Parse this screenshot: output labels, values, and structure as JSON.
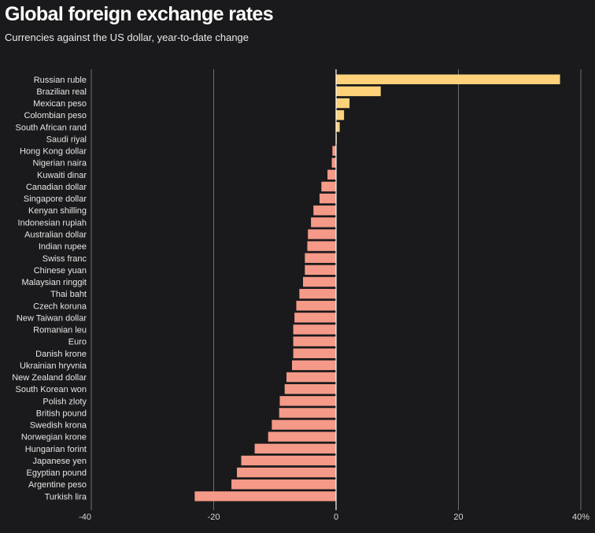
{
  "title": "Global foreign exchange rates",
  "subtitle": "Currencies against the US dollar, year-to-date change",
  "colors": {
    "background": "#1a1a1c",
    "positive": "#ffd27a",
    "negative": "#f59a88",
    "grid": "#6e6e72"
  },
  "chart_data": {
    "type": "bar",
    "orientation": "horizontal",
    "title": "Global foreign exchange rates",
    "subtitle": "Currencies against the US dollar, year-to-date change",
    "xlabel": "",
    "ylabel": "",
    "xlim": [
      -40,
      40
    ],
    "xticks": [
      -40,
      -20,
      0,
      20,
      40
    ],
    "xtick_labels": [
      "-40",
      "-20",
      "0",
      "20",
      "40%"
    ],
    "grid": true,
    "categories": [
      "Russian ruble",
      "Brazilian real",
      "Mexican peso",
      "Colombian peso",
      "South African rand",
      "Saudi riyal",
      "Hong Kong dollar",
      "Nigerian naira",
      "Kuwaiti dinar",
      "Canadian dollar",
      "Singapore dollar",
      "Kenyan shilling",
      "Indonesian rupiah",
      "Australian dollar",
      "Indian rupee",
      "Swiss franc",
      "Chinese yuan",
      "Malaysian ringgit",
      "Thai baht",
      "Czech koruna",
      "New Taiwan dollar",
      "Romanian leu",
      "Euro",
      "Danish krone",
      "Ukrainian hryvnia",
      "New Zealand dollar",
      "South Korean won",
      "Polish zloty",
      "British pound",
      "Swedish krona",
      "Norwegian krone",
      "Hungarian forint",
      "Japanese yen",
      "Egyptian pound",
      "Argentine peso",
      "Turkish lira"
    ],
    "values": [
      36.6,
      7.3,
      2.2,
      1.3,
      0.6,
      0.0,
      -0.6,
      -0.7,
      -1.4,
      -2.4,
      -2.7,
      -3.7,
      -4.1,
      -4.6,
      -4.7,
      -5.1,
      -5.1,
      -5.4,
      -6.0,
      -6.5,
      -6.8,
      -7.0,
      -7.0,
      -7.0,
      -7.2,
      -8.1,
      -8.4,
      -9.2,
      -9.3,
      -10.5,
      -11.1,
      -13.3,
      -15.5,
      -16.2,
      -17.1,
      -23.1
    ]
  }
}
